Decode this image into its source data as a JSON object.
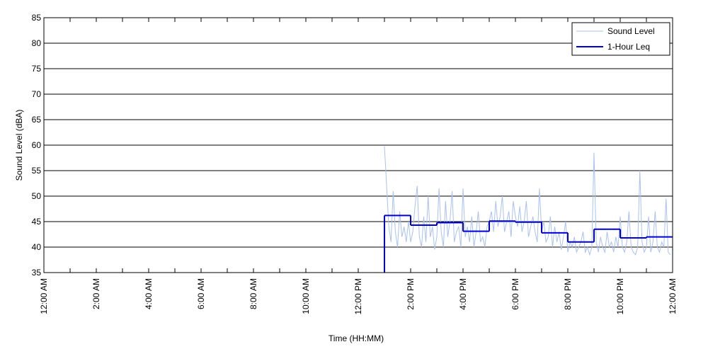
{
  "chart_data": {
    "type": "line",
    "xlabel": "Time (HH:MM)",
    "ylabel": "Sound Level (dBA)",
    "xlim": [
      0,
      1440
    ],
    "xticks": [
      {
        "value": 0,
        "label": "12:00 AM"
      },
      {
        "value": 120,
        "label": "2:00 AM"
      },
      {
        "value": 240,
        "label": "4:00 AM"
      },
      {
        "value": 360,
        "label": "6:00 AM"
      },
      {
        "value": 480,
        "label": "8:00 AM"
      },
      {
        "value": 600,
        "label": "10:00 AM"
      },
      {
        "value": 720,
        "label": "12:00 PM"
      },
      {
        "value": 840,
        "label": "2:00 PM"
      },
      {
        "value": 960,
        "label": "4:00 PM"
      },
      {
        "value": 1080,
        "label": "6:00 PM"
      },
      {
        "value": 1200,
        "label": "8:00 PM"
      },
      {
        "value": 1320,
        "label": "10:00 PM"
      },
      {
        "value": 1440,
        "label": "12:00 AM"
      }
    ],
    "xminorticks": [
      60,
      180,
      300,
      420,
      540,
      660,
      780,
      900,
      1020,
      1140,
      1260,
      1380
    ],
    "ylim": [
      35,
      85
    ],
    "yticks": [
      35,
      40,
      45,
      50,
      55,
      60,
      65,
      70,
      75,
      80,
      85
    ],
    "grid": true,
    "legend": "upper right",
    "series": [
      {
        "name": "Sound Level",
        "color": "#a9c1f2",
        "style": "line",
        "x": [
          780,
          785,
          790,
          795,
          800,
          805,
          810,
          815,
          820,
          825,
          830,
          835,
          840,
          845,
          850,
          855,
          860,
          865,
          870,
          875,
          880,
          885,
          890,
          895,
          900,
          905,
          910,
          915,
          920,
          925,
          930,
          935,
          940,
          945,
          950,
          955,
          960,
          965,
          970,
          975,
          980,
          985,
          990,
          995,
          1000,
          1005,
          1010,
          1015,
          1020,
          1025,
          1030,
          1035,
          1040,
          1045,
          1050,
          1055,
          1060,
          1065,
          1070,
          1075,
          1080,
          1085,
          1090,
          1095,
          1100,
          1105,
          1110,
          1115,
          1120,
          1125,
          1130,
          1135,
          1140,
          1145,
          1150,
          1155,
          1160,
          1165,
          1170,
          1175,
          1180,
          1185,
          1190,
          1195,
          1200,
          1205,
          1210,
          1215,
          1220,
          1225,
          1230,
          1235,
          1240,
          1245,
          1250,
          1255,
          1260,
          1265,
          1270,
          1275,
          1280,
          1285,
          1290,
          1295,
          1300,
          1305,
          1310,
          1315,
          1320,
          1325,
          1330,
          1335,
          1340,
          1345,
          1350,
          1355,
          1360,
          1365,
          1370,
          1375,
          1380,
          1385,
          1390,
          1395,
          1400,
          1405,
          1410,
          1415,
          1420,
          1425,
          1430,
          1435
        ],
        "values": [
          59.8,
          52,
          44,
          41,
          51,
          43,
          40,
          47,
          42,
          44,
          41,
          45,
          41,
          43,
          48,
          52,
          42,
          40,
          46,
          41,
          50,
          42,
          44,
          39.5,
          42,
          51.5,
          43,
          40,
          49,
          42,
          45,
          51,
          41,
          43,
          44,
          40,
          51.5,
          42,
          44,
          41,
          46,
          40,
          43,
          47,
          41,
          42,
          40,
          44,
          45,
          47,
          43,
          49,
          44,
          46,
          50,
          43,
          45,
          47,
          42,
          49,
          46,
          44,
          48,
          43,
          45,
          49,
          42,
          44,
          46,
          43,
          41,
          51.5,
          43,
          45,
          41,
          42,
          46,
          40,
          44,
          41,
          43,
          39.5,
          42,
          45,
          39,
          41,
          40,
          42,
          39,
          40,
          41,
          43,
          39,
          40,
          38.5,
          40,
          58.5,
          41,
          39,
          42,
          40,
          39,
          43,
          40,
          41,
          39,
          42,
          40,
          46,
          40,
          39,
          41,
          47,
          40,
          39,
          38.5,
          40,
          55,
          41,
          39,
          40,
          46,
          39,
          41,
          47,
          40,
          39,
          41,
          40,
          49.5,
          39,
          38.5
        ]
      },
      {
        "name": "1-Hour Leq",
        "color": "#0000d4",
        "style": "step",
        "x": [
          780,
          840,
          900,
          960,
          1020,
          1080,
          1140,
          1200,
          1260,
          1320,
          1380
        ],
        "values": [
          46.2,
          44.3,
          44.8,
          43.1,
          45.1,
          44.9,
          42.8,
          41.0,
          43.5,
          41.8,
          42.0
        ]
      }
    ]
  }
}
